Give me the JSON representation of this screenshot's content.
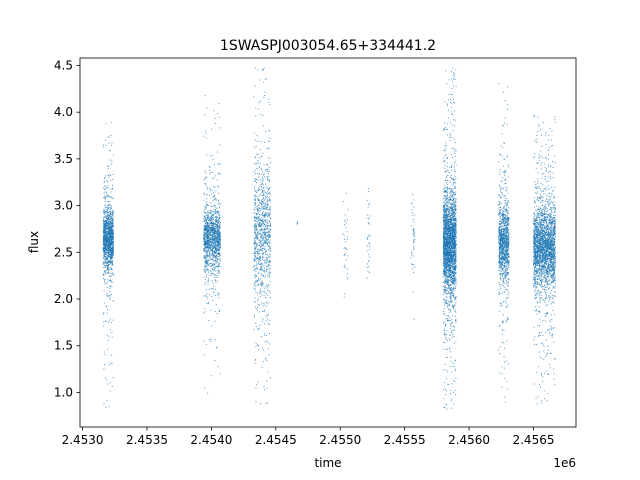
{
  "chart_data": {
    "type": "scatter",
    "title": "1SWASPJ003054.65+334441.2",
    "xlabel": "time",
    "ylabel": "flux",
    "x_offset_label": "1e6",
    "xlim": [
      2452980,
      2456830
    ],
    "ylim": [
      0.63,
      4.58
    ],
    "x_ticks": [
      2453000,
      2453500,
      2454000,
      2454500,
      2455000,
      2455500,
      2456000,
      2456500
    ],
    "x_tick_labels": [
      "2.4530",
      "2.4535",
      "2.4540",
      "2.4545",
      "2.4550",
      "2.4555",
      "2.4560",
      "2.4565"
    ],
    "y_ticks": [
      1.0,
      1.5,
      2.0,
      2.5,
      3.0,
      3.5,
      4.0,
      4.5
    ],
    "y_tick_labels": [
      "1.0",
      "1.5",
      "2.0",
      "2.5",
      "3.0",
      "3.5",
      "4.0",
      "4.5"
    ],
    "grid": false,
    "marker_color": "#1f77b4",
    "series": [
      {
        "clusters": [
          {
            "x_start": 2453160,
            "x_end": 2453240,
            "center": 2.65,
            "spread": 0.16,
            "min": 0.8,
            "max": 3.9,
            "count": 1300
          },
          {
            "x_start": 2453940,
            "x_end": 2454070,
            "center": 2.65,
            "spread": 0.17,
            "min": 0.85,
            "max": 4.27,
            "count": 1300
          },
          {
            "x_start": 2454330,
            "x_end": 2454460,
            "center": 2.7,
            "spread": 0.35,
            "min": 0.87,
            "max": 4.5,
            "count": 950
          },
          {
            "x_start": 2454660,
            "x_end": 2454670,
            "center": 2.82,
            "spread": 0.02,
            "min": 2.8,
            "max": 2.86,
            "count": 4
          },
          {
            "x_start": 2455020,
            "x_end": 2455060,
            "center": 2.6,
            "spread": 0.3,
            "min": 2.02,
            "max": 3.25,
            "count": 35
          },
          {
            "x_start": 2455210,
            "x_end": 2455230,
            "center": 2.65,
            "spread": 0.25,
            "min": 2.22,
            "max": 3.22,
            "count": 35
          },
          {
            "x_start": 2455550,
            "x_end": 2455580,
            "center": 2.55,
            "spread": 0.25,
            "min": 1.75,
            "max": 3.15,
            "count": 45
          },
          {
            "x_start": 2455800,
            "x_end": 2455900,
            "center": 2.6,
            "spread": 0.25,
            "min": 0.82,
            "max": 4.5,
            "count": 2600
          },
          {
            "x_start": 2456230,
            "x_end": 2456310,
            "center": 2.62,
            "spread": 0.2,
            "min": 0.88,
            "max": 4.4,
            "count": 1100
          },
          {
            "x_start": 2456500,
            "x_end": 2456670,
            "center": 2.55,
            "spread": 0.22,
            "min": 0.82,
            "max": 3.98,
            "count": 2400
          }
        ]
      }
    ]
  }
}
